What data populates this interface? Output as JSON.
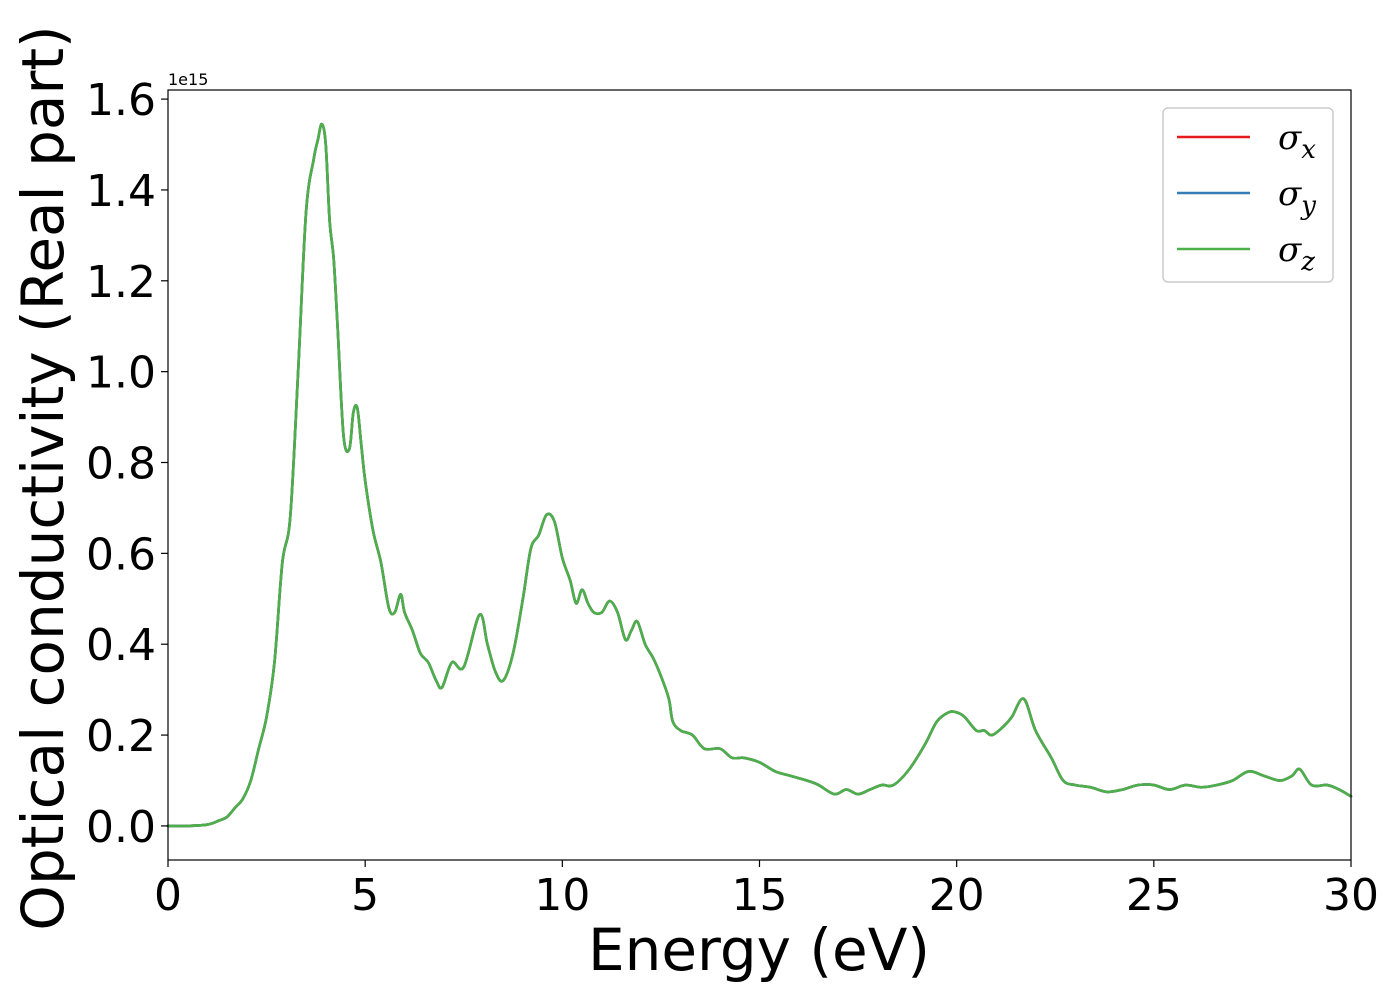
{
  "chart_data": {
    "type": "line",
    "xlabel": "Energy (eV)",
    "ylabel": "Optical conductivity (Real part)",
    "y_offset_label": "1e15",
    "xlim": [
      0,
      30
    ],
    "ylim": [
      -0.075,
      1.62
    ],
    "y_scale_factor": 1000000000000000.0,
    "xticks": [
      0,
      5,
      10,
      15,
      20,
      25,
      30
    ],
    "xtick_labels": [
      "0",
      "5",
      "10",
      "15",
      "20",
      "25",
      "30"
    ],
    "yticks": [
      0.0,
      0.2,
      0.4,
      0.6,
      0.8,
      1.0,
      1.2,
      1.4,
      1.6
    ],
    "ytick_labels": [
      "0.0",
      "0.2",
      "0.4",
      "0.6",
      "0.8",
      "1.0",
      "1.2",
      "1.4",
      "1.6"
    ],
    "grid": false,
    "legend_position": "top-right",
    "series": [
      {
        "name": "σ",
        "subscript": "x",
        "color": "#e41a1c",
        "x": [
          0,
          0.5,
          1.0,
          1.3,
          1.5,
          1.7,
          1.9,
          2.1,
          2.3,
          2.5,
          2.7,
          2.9,
          3.1,
          3.3,
          3.5,
          3.7,
          3.8,
          3.9,
          4.0,
          4.1,
          4.2,
          4.3,
          4.45,
          4.6,
          4.7,
          4.8,
          4.9,
          5.0,
          5.2,
          5.4,
          5.6,
          5.75,
          5.9,
          6.0,
          6.2,
          6.4,
          6.6,
          6.8,
          6.95,
          7.2,
          7.5,
          7.9,
          8.1,
          8.3,
          8.5,
          8.75,
          9.0,
          9.2,
          9.4,
          9.6,
          9.8,
          10.0,
          10.2,
          10.35,
          10.5,
          10.65,
          10.8,
          11.0,
          11.2,
          11.4,
          11.6,
          11.75,
          11.9,
          12.1,
          12.3,
          12.5,
          12.7,
          12.8,
          13.0,
          13.3,
          13.6,
          14.0,
          14.3,
          14.6,
          15.0,
          15.4,
          15.8,
          16.2,
          16.5,
          16.9,
          17.2,
          17.5,
          17.8,
          18.1,
          18.4,
          18.8,
          19.2,
          19.5,
          19.8,
          20.0,
          20.2,
          20.5,
          20.7,
          20.9,
          21.2,
          21.4,
          21.7,
          22.0,
          22.4,
          22.7,
          23.0,
          23.4,
          23.8,
          24.2,
          24.6,
          25.0,
          25.4,
          25.8,
          26.2,
          26.6,
          27.0,
          27.4,
          27.8,
          28.2,
          28.5,
          28.7,
          29.0,
          29.4,
          29.7,
          30.0
        ],
        "values": [
          0.0,
          0.0,
          0.003,
          0.012,
          0.02,
          0.04,
          0.06,
          0.1,
          0.17,
          0.24,
          0.36,
          0.58,
          0.68,
          1.0,
          1.35,
          1.47,
          1.51,
          1.545,
          1.5,
          1.33,
          1.25,
          1.1,
          0.86,
          0.83,
          0.91,
          0.92,
          0.84,
          0.76,
          0.65,
          0.58,
          0.48,
          0.47,
          0.51,
          0.47,
          0.43,
          0.38,
          0.36,
          0.32,
          0.305,
          0.36,
          0.35,
          0.465,
          0.4,
          0.34,
          0.32,
          0.38,
          0.5,
          0.61,
          0.64,
          0.685,
          0.67,
          0.59,
          0.54,
          0.49,
          0.52,
          0.49,
          0.47,
          0.47,
          0.495,
          0.47,
          0.41,
          0.43,
          0.45,
          0.4,
          0.37,
          0.33,
          0.28,
          0.23,
          0.21,
          0.2,
          0.17,
          0.17,
          0.15,
          0.15,
          0.14,
          0.12,
          0.11,
          0.1,
          0.09,
          0.07,
          0.08,
          0.07,
          0.08,
          0.09,
          0.09,
          0.125,
          0.18,
          0.23,
          0.25,
          0.25,
          0.24,
          0.21,
          0.21,
          0.2,
          0.22,
          0.24,
          0.28,
          0.21,
          0.15,
          0.1,
          0.09,
          0.085,
          0.075,
          0.08,
          0.09,
          0.09,
          0.08,
          0.09,
          0.085,
          0.09,
          0.1,
          0.12,
          0.11,
          0.1,
          0.11,
          0.125,
          0.09,
          0.09,
          0.08,
          0.065
        ]
      },
      {
        "name": "σ",
        "subscript": "y",
        "color": "#377eb8",
        "x": [
          0,
          0.5,
          1.0,
          1.3,
          1.5,
          1.7,
          1.9,
          2.1,
          2.3,
          2.5,
          2.7,
          2.9,
          3.1,
          3.3,
          3.5,
          3.7,
          3.8,
          3.9,
          4.0,
          4.1,
          4.2,
          4.3,
          4.45,
          4.6,
          4.7,
          4.8,
          4.9,
          5.0,
          5.2,
          5.4,
          5.6,
          5.75,
          5.9,
          6.0,
          6.2,
          6.4,
          6.6,
          6.8,
          6.95,
          7.2,
          7.5,
          7.9,
          8.1,
          8.3,
          8.5,
          8.75,
          9.0,
          9.2,
          9.4,
          9.6,
          9.8,
          10.0,
          10.2,
          10.35,
          10.5,
          10.65,
          10.8,
          11.0,
          11.2,
          11.4,
          11.6,
          11.75,
          11.9,
          12.1,
          12.3,
          12.5,
          12.7,
          12.8,
          13.0,
          13.3,
          13.6,
          14.0,
          14.3,
          14.6,
          15.0,
          15.4,
          15.8,
          16.2,
          16.5,
          16.9,
          17.2,
          17.5,
          17.8,
          18.1,
          18.4,
          18.8,
          19.2,
          19.5,
          19.8,
          20.0,
          20.2,
          20.5,
          20.7,
          20.9,
          21.2,
          21.4,
          21.7,
          22.0,
          22.4,
          22.7,
          23.0,
          23.4,
          23.8,
          24.2,
          24.6,
          25.0,
          25.4,
          25.8,
          26.2,
          26.6,
          27.0,
          27.4,
          27.8,
          28.2,
          28.5,
          28.7,
          29.0,
          29.4,
          29.7,
          30.0
        ],
        "values": [
          0.0,
          0.0,
          0.003,
          0.012,
          0.02,
          0.04,
          0.06,
          0.1,
          0.17,
          0.24,
          0.36,
          0.58,
          0.68,
          1.0,
          1.35,
          1.47,
          1.51,
          1.545,
          1.5,
          1.33,
          1.25,
          1.1,
          0.86,
          0.83,
          0.91,
          0.92,
          0.84,
          0.76,
          0.65,
          0.58,
          0.48,
          0.47,
          0.51,
          0.47,
          0.43,
          0.38,
          0.36,
          0.32,
          0.305,
          0.36,
          0.35,
          0.465,
          0.4,
          0.34,
          0.32,
          0.38,
          0.5,
          0.61,
          0.64,
          0.685,
          0.67,
          0.59,
          0.54,
          0.49,
          0.52,
          0.49,
          0.47,
          0.47,
          0.495,
          0.47,
          0.41,
          0.43,
          0.45,
          0.4,
          0.37,
          0.33,
          0.28,
          0.23,
          0.21,
          0.2,
          0.17,
          0.17,
          0.15,
          0.15,
          0.14,
          0.12,
          0.11,
          0.1,
          0.09,
          0.07,
          0.08,
          0.07,
          0.08,
          0.09,
          0.09,
          0.125,
          0.18,
          0.23,
          0.25,
          0.25,
          0.24,
          0.21,
          0.21,
          0.2,
          0.22,
          0.24,
          0.28,
          0.21,
          0.15,
          0.1,
          0.09,
          0.085,
          0.075,
          0.08,
          0.09,
          0.09,
          0.08,
          0.09,
          0.085,
          0.09,
          0.1,
          0.12,
          0.11,
          0.1,
          0.11,
          0.125,
          0.09,
          0.09,
          0.08,
          0.065
        ]
      },
      {
        "name": "σ",
        "subscript": "z",
        "color": "#4daf4a",
        "x": [
          0,
          0.5,
          1.0,
          1.3,
          1.5,
          1.7,
          1.9,
          2.1,
          2.3,
          2.5,
          2.7,
          2.9,
          3.1,
          3.3,
          3.5,
          3.7,
          3.8,
          3.9,
          4.0,
          4.1,
          4.2,
          4.3,
          4.45,
          4.6,
          4.7,
          4.8,
          4.9,
          5.0,
          5.2,
          5.4,
          5.6,
          5.75,
          5.9,
          6.0,
          6.2,
          6.4,
          6.6,
          6.8,
          6.95,
          7.2,
          7.5,
          7.9,
          8.1,
          8.3,
          8.5,
          8.75,
          9.0,
          9.2,
          9.4,
          9.6,
          9.8,
          10.0,
          10.2,
          10.35,
          10.5,
          10.65,
          10.8,
          11.0,
          11.2,
          11.4,
          11.6,
          11.75,
          11.9,
          12.1,
          12.3,
          12.5,
          12.7,
          12.8,
          13.0,
          13.3,
          13.6,
          14.0,
          14.3,
          14.6,
          15.0,
          15.4,
          15.8,
          16.2,
          16.5,
          16.9,
          17.2,
          17.5,
          17.8,
          18.1,
          18.4,
          18.8,
          19.2,
          19.5,
          19.8,
          20.0,
          20.2,
          20.5,
          20.7,
          20.9,
          21.2,
          21.4,
          21.7,
          22.0,
          22.4,
          22.7,
          23.0,
          23.4,
          23.8,
          24.2,
          24.6,
          25.0,
          25.4,
          25.8,
          26.2,
          26.6,
          27.0,
          27.4,
          27.8,
          28.2,
          28.5,
          28.7,
          29.0,
          29.4,
          29.7,
          30.0
        ],
        "values": [
          0.0,
          0.0,
          0.003,
          0.012,
          0.02,
          0.04,
          0.06,
          0.1,
          0.17,
          0.24,
          0.36,
          0.58,
          0.68,
          1.0,
          1.35,
          1.47,
          1.51,
          1.545,
          1.5,
          1.33,
          1.25,
          1.1,
          0.86,
          0.83,
          0.91,
          0.92,
          0.84,
          0.76,
          0.65,
          0.58,
          0.48,
          0.47,
          0.51,
          0.47,
          0.43,
          0.38,
          0.36,
          0.32,
          0.305,
          0.36,
          0.35,
          0.465,
          0.4,
          0.34,
          0.32,
          0.38,
          0.5,
          0.61,
          0.64,
          0.685,
          0.67,
          0.59,
          0.54,
          0.49,
          0.52,
          0.49,
          0.47,
          0.47,
          0.495,
          0.47,
          0.41,
          0.43,
          0.45,
          0.4,
          0.37,
          0.33,
          0.28,
          0.23,
          0.21,
          0.2,
          0.17,
          0.17,
          0.15,
          0.15,
          0.14,
          0.12,
          0.11,
          0.1,
          0.09,
          0.07,
          0.08,
          0.07,
          0.08,
          0.09,
          0.09,
          0.125,
          0.18,
          0.23,
          0.25,
          0.25,
          0.24,
          0.21,
          0.21,
          0.2,
          0.22,
          0.24,
          0.28,
          0.21,
          0.15,
          0.1,
          0.09,
          0.085,
          0.075,
          0.08,
          0.09,
          0.09,
          0.08,
          0.09,
          0.085,
          0.09,
          0.1,
          0.12,
          0.11,
          0.1,
          0.11,
          0.125,
          0.09,
          0.09,
          0.08,
          0.065
        ]
      }
    ]
  }
}
